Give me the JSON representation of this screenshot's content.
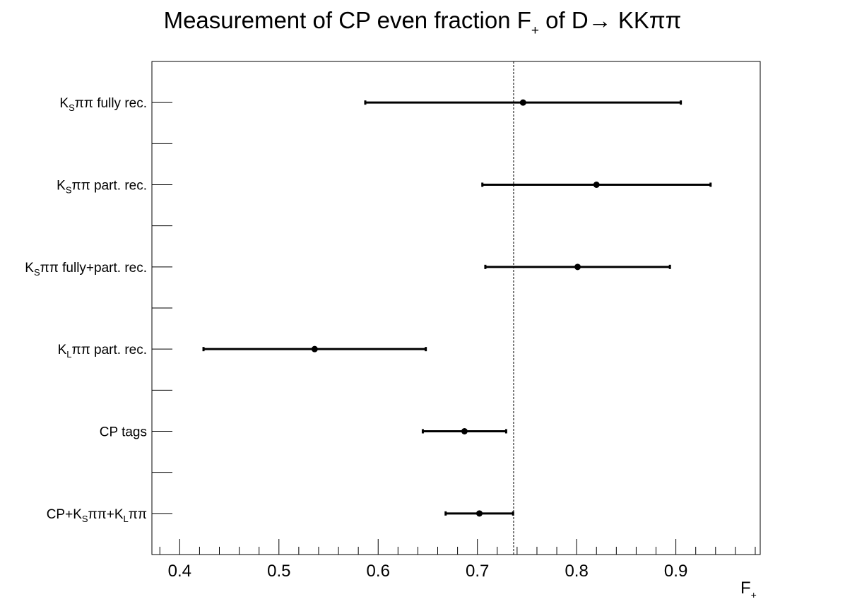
{
  "chart_data": {
    "type": "scatter",
    "title": {
      "prefix": "Measurement of CP even fraction F",
      "sub": "+",
      "suffix": " of D→ KKππ"
    },
    "xlabel": {
      "main": "F",
      "sub": "+"
    },
    "xlim": [
      0.372,
      0.985
    ],
    "xticks": [
      "0.4",
      "0.5",
      "0.6",
      "0.7",
      "0.8",
      "0.9"
    ],
    "reference_line": 0.7365,
    "grid": false,
    "legend": "none",
    "points": [
      {
        "label": [
          [
            "K",
            ""
          ],
          [
            "S",
            "sub"
          ],
          [
            "ππ fully rec.",
            ""
          ]
        ],
        "value": 0.746,
        "err_low": 0.587,
        "err_high": 0.905
      },
      {
        "label": [
          [
            "K",
            ""
          ],
          [
            "S",
            "sub"
          ],
          [
            "ππ part. rec.",
            ""
          ]
        ],
        "value": 0.82,
        "err_low": 0.705,
        "err_high": 0.935
      },
      {
        "label": [
          [
            "K",
            ""
          ],
          [
            "S",
            "sub"
          ],
          [
            "ππ fully+part. rec.",
            ""
          ]
        ],
        "value": 0.801,
        "err_low": 0.708,
        "err_high": 0.894
      },
      {
        "label": [
          [
            "K",
            ""
          ],
          [
            "L",
            "sub"
          ],
          [
            "ππ part. rec.",
            ""
          ]
        ],
        "value": 0.536,
        "err_low": 0.424,
        "err_high": 0.648
      },
      {
        "label": [
          [
            "CP tags",
            ""
          ]
        ],
        "value": 0.687,
        "err_low": 0.645,
        "err_high": 0.729
      },
      {
        "label": [
          [
            "CP+K",
            ""
          ],
          [
            "S",
            "sub"
          ],
          [
            "ππ+K",
            ""
          ],
          [
            "L",
            "sub"
          ],
          [
            "ππ",
            ""
          ]
        ],
        "value": 0.702,
        "err_low": 0.668,
        "err_high": 0.736
      }
    ],
    "colors": {
      "marker": "#000000",
      "axis": "#000000"
    }
  }
}
